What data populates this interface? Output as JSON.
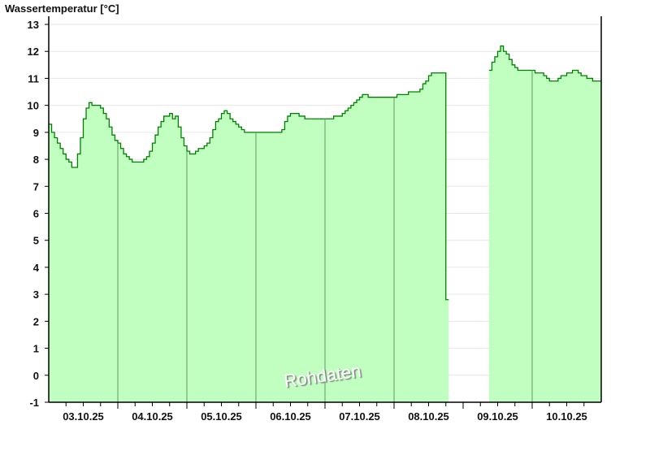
{
  "chart_data": {
    "type": "area",
    "title": "Wassertemperatur [°C]",
    "xlabel": "",
    "ylabel": "Wassertemperatur [°C]",
    "ylim": [
      -1,
      13
    ],
    "yticks": [
      -1,
      0,
      1,
      2,
      3,
      4,
      5,
      6,
      7,
      8,
      9,
      10,
      11,
      12,
      13
    ],
    "grid": true,
    "watermark": "Rohdaten",
    "colors": {
      "fill": "#c0ffc0",
      "line": "#008000",
      "day_line": "#669966",
      "grid": "#e6e6e6"
    },
    "x_resolution": "hourly, 00:00–23:00",
    "days": [
      {
        "date": "03.10.25",
        "values": [
          9.3,
          9.0,
          8.8,
          8.6,
          8.4,
          8.2,
          8.0,
          7.9,
          7.7,
          7.7,
          8.2,
          8.8,
          9.5,
          9.9,
          10.1,
          10.0,
          10.0,
          10.0,
          9.9,
          9.7,
          9.5,
          9.2,
          8.9,
          8.7
        ]
      },
      {
        "date": "04.10.25",
        "values": [
          8.6,
          8.4,
          8.2,
          8.1,
          8.0,
          7.9,
          7.9,
          7.9,
          7.9,
          8.0,
          8.1,
          8.3,
          8.6,
          8.9,
          9.2,
          9.4,
          9.6,
          9.6,
          9.7,
          9.5,
          9.6,
          9.2,
          8.8,
          8.5
        ]
      },
      {
        "date": "05.10.25",
        "values": [
          8.3,
          8.2,
          8.2,
          8.3,
          8.4,
          8.4,
          8.5,
          8.6,
          8.8,
          9.1,
          9.4,
          9.5,
          9.7,
          9.8,
          9.7,
          9.5,
          9.4,
          9.3,
          9.2,
          9.1,
          9.0,
          9.0,
          9.0,
          9.0
        ]
      },
      {
        "date": "06.10.25",
        "values": [
          9.0,
          9.0,
          9.0,
          9.0,
          9.0,
          9.0,
          9.0,
          9.0,
          9.0,
          9.1,
          9.4,
          9.6,
          9.7,
          9.7,
          9.7,
          9.6,
          9.6,
          9.5,
          9.5,
          9.5,
          9.5,
          9.5,
          9.5,
          9.5
        ]
      },
      {
        "date": "07.10.25",
        "values": [
          9.5,
          9.5,
          9.5,
          9.6,
          9.6,
          9.6,
          9.7,
          9.8,
          9.9,
          10.0,
          10.1,
          10.2,
          10.3,
          10.4,
          10.4,
          10.3,
          10.3,
          10.3,
          10.3,
          10.3,
          10.3,
          10.3,
          10.3,
          10.3
        ]
      },
      {
        "date": "08.10.25",
        "values": [
          10.3,
          10.4,
          10.4,
          10.4,
          10.4,
          10.5,
          10.5,
          10.5,
          10.5,
          10.6,
          10.8,
          10.9,
          11.1,
          11.2,
          11.2,
          11.2,
          11.2,
          11.2,
          2.8,
          null,
          null,
          null,
          null,
          null
        ]
      },
      {
        "date": "09.10.25",
        "values": [
          null,
          null,
          null,
          null,
          null,
          null,
          null,
          null,
          null,
          11.3,
          11.6,
          11.8,
          12.0,
          12.2,
          12.0,
          11.9,
          11.7,
          11.5,
          11.4,
          11.3,
          11.3,
          11.3,
          11.3,
          11.3
        ]
      },
      {
        "date": "10.10.25",
        "values": [
          11.3,
          11.2,
          11.2,
          11.2,
          11.1,
          11.0,
          10.9,
          10.9,
          10.9,
          11.0,
          11.1,
          11.1,
          11.2,
          11.2,
          11.3,
          11.3,
          11.2,
          11.1,
          11.1,
          11.0,
          11.0,
          10.9,
          10.9,
          10.9
        ]
      }
    ]
  }
}
